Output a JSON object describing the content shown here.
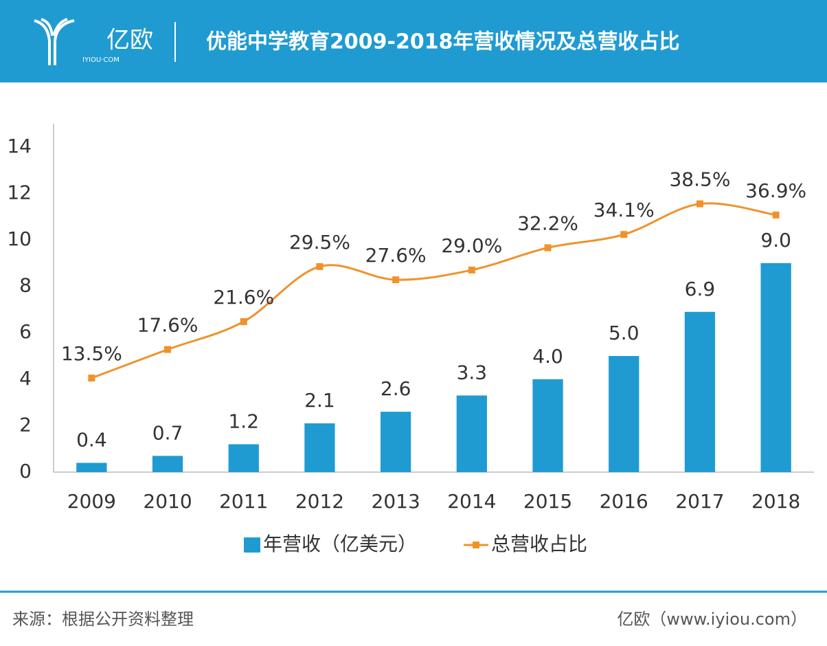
{
  "header": {
    "logo_text": "亿欧",
    "logo_sub": "IYIOU·COM"
  },
  "chart_data": {
    "type": "bar-line",
    "title": "优能中学教育2009-2018年营收情况及总营收占比",
    "categories": [
      "2009",
      "2010",
      "2011",
      "2012",
      "2013",
      "2014",
      "2015",
      "2016",
      "2017",
      "2018"
    ],
    "series": [
      {
        "name": "年营收（亿美元）",
        "type": "bar",
        "color": "#1f9bd1",
        "values": [
          0.4,
          0.7,
          1.2,
          2.1,
          2.6,
          3.3,
          4.0,
          5.0,
          6.9,
          9.0
        ],
        "value_labels": [
          "0.4",
          "0.7",
          "1.2",
          "2.1",
          "2.6",
          "3.3",
          "4.0",
          "5.0",
          "6.9",
          "9.0"
        ]
      },
      {
        "name": "总营收占比",
        "type": "line",
        "axis": "y2",
        "color": "#f0922b",
        "values": [
          13.5,
          17.6,
          21.6,
          29.5,
          27.6,
          29.0,
          32.2,
          34.1,
          38.5,
          36.9
        ],
        "value_labels": [
          "13.5%",
          "17.6%",
          "21.6%",
          "29.5%",
          "27.6%",
          "29.0%",
          "32.2%",
          "34.1%",
          "38.5%",
          "36.9%"
        ]
      }
    ],
    "ylim": [
      0,
      15
    ],
    "yticks": [
      0,
      2,
      4,
      6,
      8,
      10,
      12,
      14
    ],
    "y2lim": [
      0,
      50
    ],
    "grid": false,
    "legend": "bottom"
  },
  "footer": {
    "source": "来源：根据公开资料整理",
    "site": "亿欧（www.iyiou.com）"
  }
}
